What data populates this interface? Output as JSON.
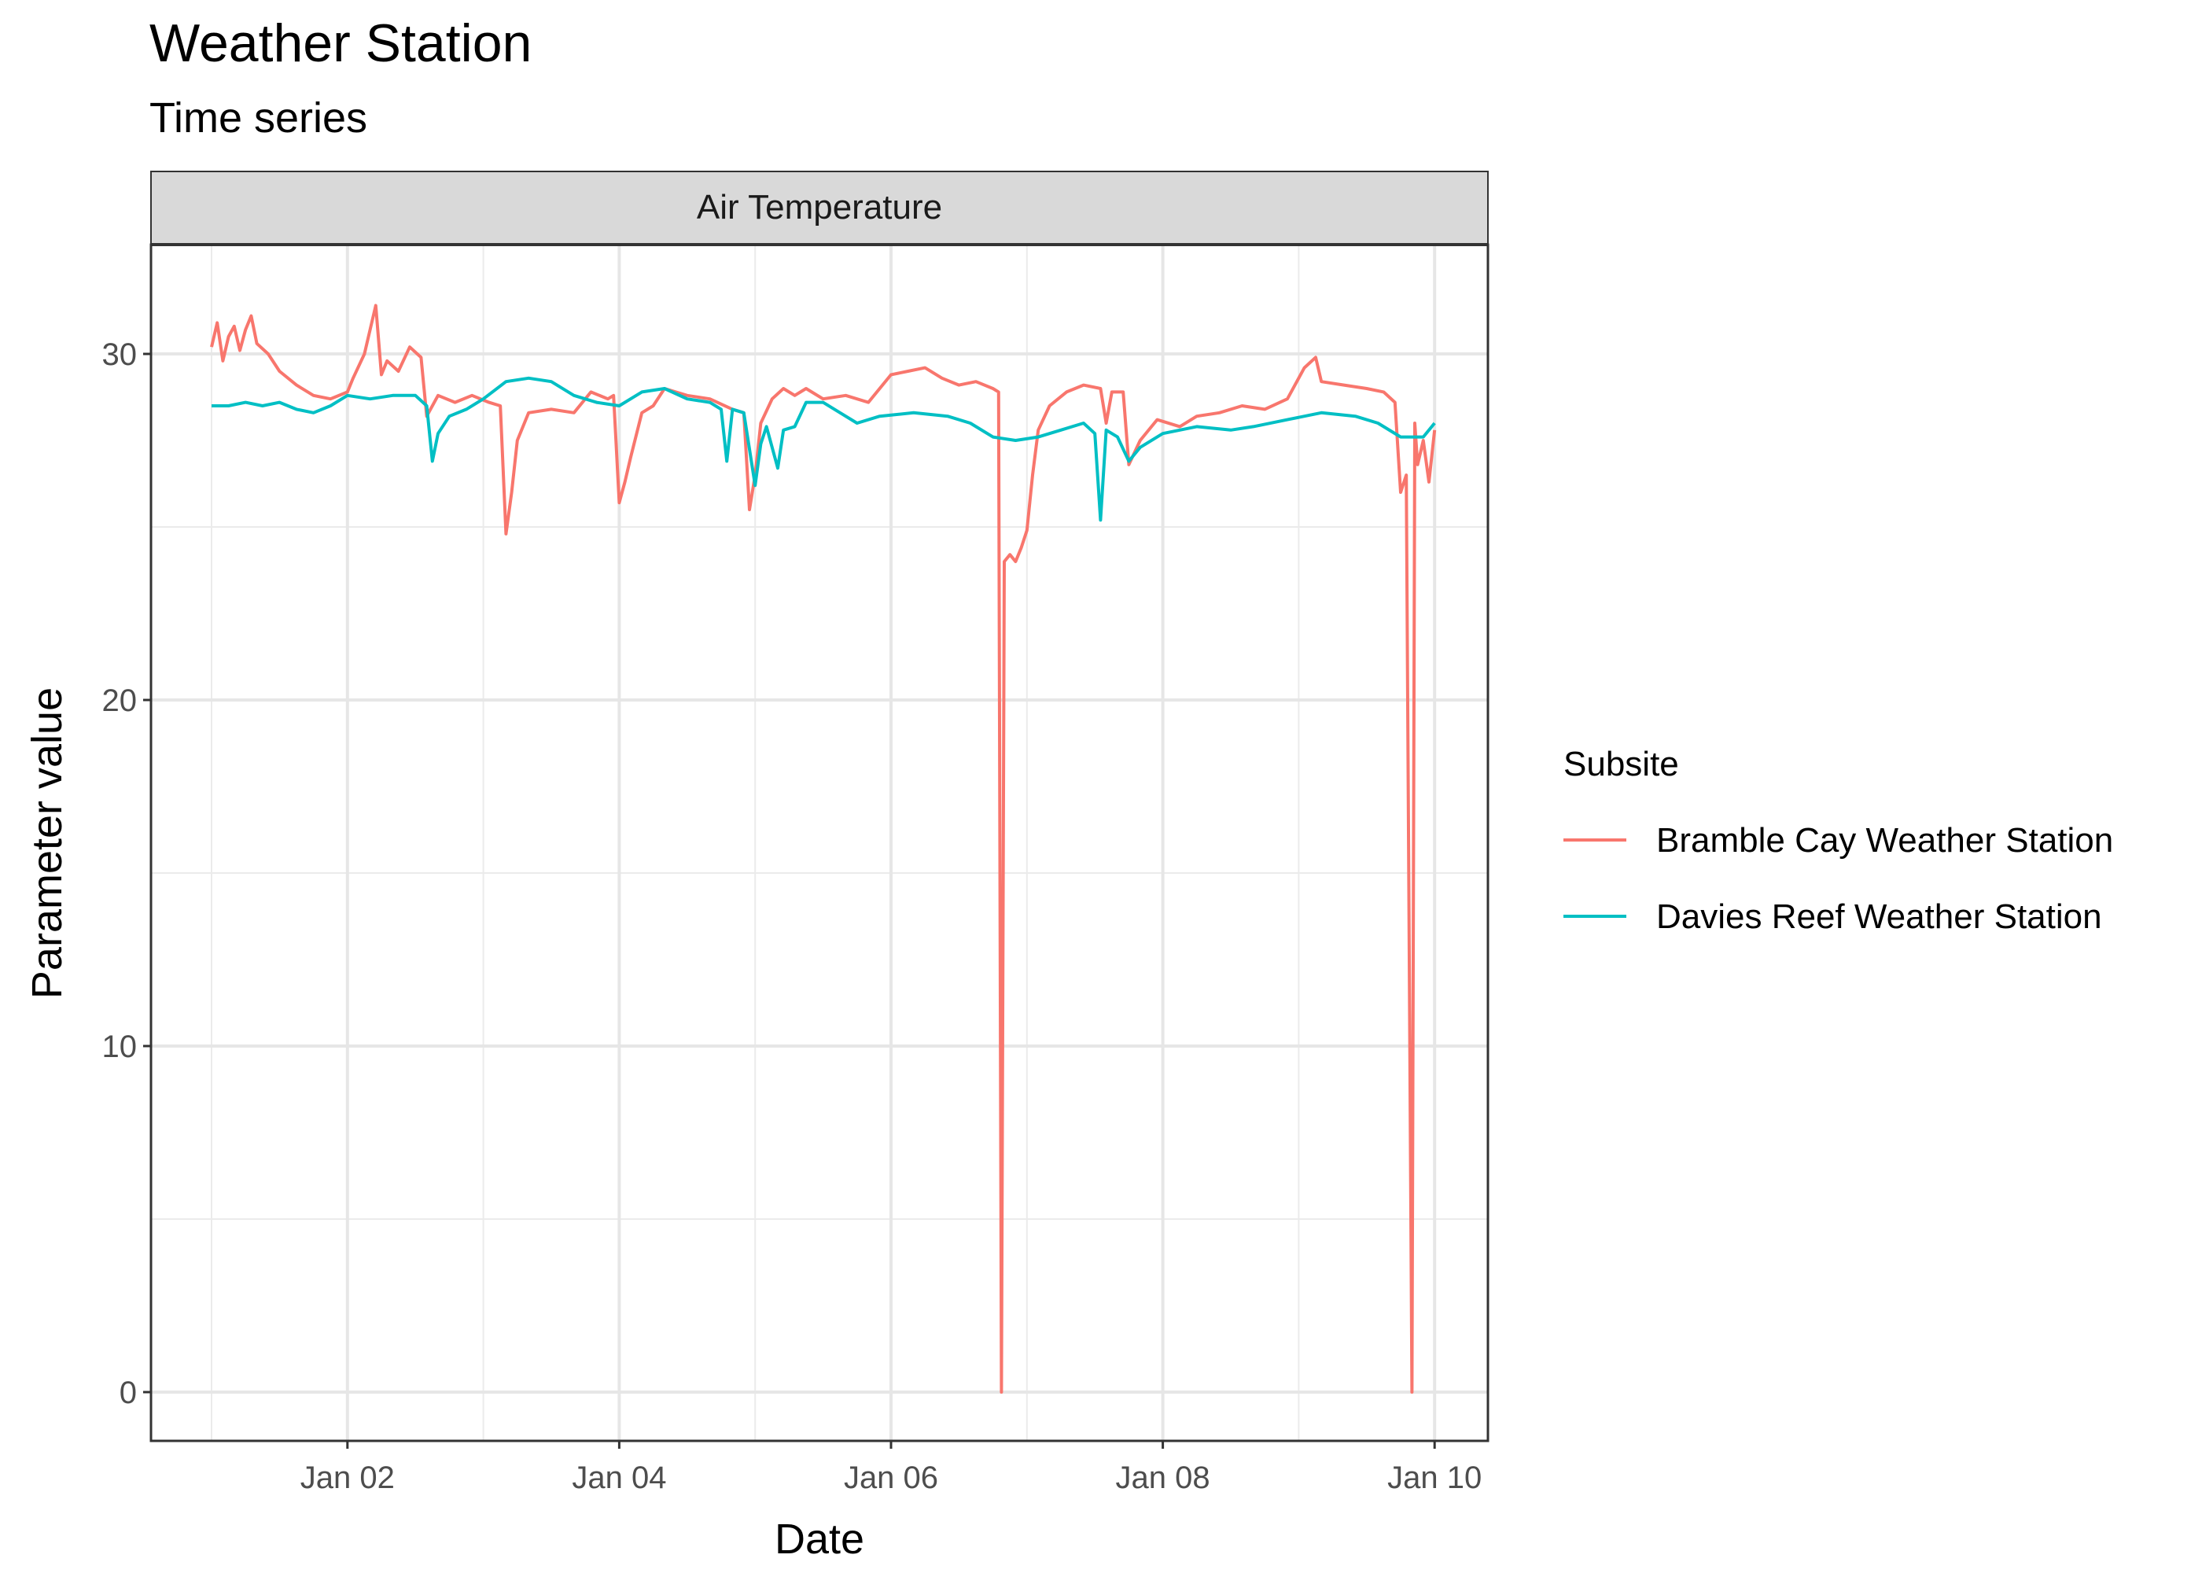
{
  "chart_data": {
    "type": "line",
    "title": "Weather Station",
    "subtitle": "Time series",
    "facet_label": "Air Temperature",
    "xlabel": "Date",
    "ylabel": "Parameter value",
    "x_ticks": [
      "Jan 02",
      "Jan 04",
      "Jan 06",
      "Jan 08",
      "Jan 10"
    ],
    "y_ticks": [
      "0",
      "10",
      "20",
      "30"
    ],
    "xlim": [
      "2024-01-01T00:00",
      "2024-01-10T00:00"
    ],
    "ylim": [
      0,
      30
    ],
    "grid": true,
    "legend_position": "right",
    "legend": {
      "title": "Subsite",
      "entries": [
        "Bramble Cay Weather Station",
        "Davies Reef Weather Station"
      ]
    },
    "series": [
      {
        "name": "Bramble Cay Weather Station",
        "color": "#F8766D",
        "points": [
          [
            "2024-01-01T00:00",
            30.2
          ],
          [
            "2024-01-01T01:00",
            30.9
          ],
          [
            "2024-01-01T02:00",
            29.8
          ],
          [
            "2024-01-01T03:00",
            30.5
          ],
          [
            "2024-01-01T04:00",
            30.8
          ],
          [
            "2024-01-01T05:00",
            30.1
          ],
          [
            "2024-01-01T06:00",
            30.7
          ],
          [
            "2024-01-01T07:00",
            31.1
          ],
          [
            "2024-01-01T08:00",
            30.3
          ],
          [
            "2024-01-01T10:00",
            30.0
          ],
          [
            "2024-01-01T12:00",
            29.5
          ],
          [
            "2024-01-01T15:00",
            29.1
          ],
          [
            "2024-01-01T18:00",
            28.8
          ],
          [
            "2024-01-01T21:00",
            28.7
          ],
          [
            "2024-01-02T00:00",
            28.9
          ],
          [
            "2024-01-02T01:00",
            29.3
          ],
          [
            "2024-01-02T03:00",
            30.0
          ],
          [
            "2024-01-02T05:00",
            31.4
          ],
          [
            "2024-01-02T06:00",
            29.4
          ],
          [
            "2024-01-02T07:00",
            29.8
          ],
          [
            "2024-01-02T09:00",
            29.5
          ],
          [
            "2024-01-02T11:00",
            30.2
          ],
          [
            "2024-01-02T13:00",
            29.9
          ],
          [
            "2024-01-02T14:00",
            28.2
          ],
          [
            "2024-01-02T16:00",
            28.8
          ],
          [
            "2024-01-02T19:00",
            28.6
          ],
          [
            "2024-01-02T22:00",
            28.8
          ],
          [
            "2024-01-03T01:00",
            28.6
          ],
          [
            "2024-01-03T03:00",
            28.5
          ],
          [
            "2024-01-03T04:00",
            24.8
          ],
          [
            "2024-01-03T05:00",
            26.0
          ],
          [
            "2024-01-03T06:00",
            27.5
          ],
          [
            "2024-01-03T08:00",
            28.3
          ],
          [
            "2024-01-03T12:00",
            28.4
          ],
          [
            "2024-01-03T16:00",
            28.3
          ],
          [
            "2024-01-03T19:00",
            28.9
          ],
          [
            "2024-01-03T22:00",
            28.7
          ],
          [
            "2024-01-03T23:00",
            28.8
          ],
          [
            "2024-01-04T00:00",
            25.7
          ],
          [
            "2024-01-04T01:00",
            26.3
          ],
          [
            "2024-01-04T02:00",
            27.0
          ],
          [
            "2024-01-04T04:00",
            28.3
          ],
          [
            "2024-01-04T06:00",
            28.5
          ],
          [
            "2024-01-04T08:00",
            29.0
          ],
          [
            "2024-01-04T12:00",
            28.8
          ],
          [
            "2024-01-04T16:00",
            28.7
          ],
          [
            "2024-01-04T20:00",
            28.4
          ],
          [
            "2024-01-04T22:00",
            28.3
          ],
          [
            "2024-01-04T23:00",
            25.5
          ],
          [
            "2024-01-05T00:00",
            26.5
          ],
          [
            "2024-01-05T01:00",
            28.0
          ],
          [
            "2024-01-05T03:00",
            28.7
          ],
          [
            "2024-01-05T05:00",
            29.0
          ],
          [
            "2024-01-05T07:00",
            28.8
          ],
          [
            "2024-01-05T09:00",
            29.0
          ],
          [
            "2024-01-05T12:00",
            28.7
          ],
          [
            "2024-01-05T16:00",
            28.8
          ],
          [
            "2024-01-05T20:00",
            28.6
          ],
          [
            "2024-01-06T00:00",
            29.4
          ],
          [
            "2024-01-06T03:00",
            29.5
          ],
          [
            "2024-01-06T06:00",
            29.6
          ],
          [
            "2024-01-06T09:00",
            29.3
          ],
          [
            "2024-01-06T12:00",
            29.1
          ],
          [
            "2024-01-06T15:00",
            29.2
          ],
          [
            "2024-01-06T18:00",
            29.0
          ],
          [
            "2024-01-06T19:00",
            28.9
          ],
          [
            "2024-01-06T19:30",
            0.0
          ],
          [
            "2024-01-06T20:00",
            24.0
          ],
          [
            "2024-01-06T21:00",
            24.2
          ],
          [
            "2024-01-06T22:00",
            24.0
          ],
          [
            "2024-01-06T23:00",
            24.4
          ],
          [
            "2024-01-07T00:00",
            24.9
          ],
          [
            "2024-01-07T01:00",
            26.5
          ],
          [
            "2024-01-07T02:00",
            27.8
          ],
          [
            "2024-01-07T04:00",
            28.5
          ],
          [
            "2024-01-07T07:00",
            28.9
          ],
          [
            "2024-01-07T10:00",
            29.1
          ],
          [
            "2024-01-07T13:00",
            29.0
          ],
          [
            "2024-01-07T14:00",
            28.0
          ],
          [
            "2024-01-07T15:00",
            28.9
          ],
          [
            "2024-01-07T17:00",
            28.9
          ],
          [
            "2024-01-07T18:00",
            26.8
          ],
          [
            "2024-01-07T20:00",
            27.5
          ],
          [
            "2024-01-07T23:00",
            28.1
          ],
          [
            "2024-01-08T03:00",
            27.9
          ],
          [
            "2024-01-08T06:00",
            28.2
          ],
          [
            "2024-01-08T10:00",
            28.3
          ],
          [
            "2024-01-08T14:00",
            28.5
          ],
          [
            "2024-01-08T18:00",
            28.4
          ],
          [
            "2024-01-08T22:00",
            28.7
          ],
          [
            "2024-01-09T01:00",
            29.6
          ],
          [
            "2024-01-09T03:00",
            29.9
          ],
          [
            "2024-01-09T04:00",
            29.2
          ],
          [
            "2024-01-09T08:00",
            29.1
          ],
          [
            "2024-01-09T12:00",
            29.0
          ],
          [
            "2024-01-09T15:00",
            28.9
          ],
          [
            "2024-01-09T17:00",
            28.6
          ],
          [
            "2024-01-09T18:00",
            26.0
          ],
          [
            "2024-01-09T19:00",
            26.5
          ],
          [
            "2024-01-09T20:00",
            0.0
          ],
          [
            "2024-01-09T20:30",
            28.0
          ],
          [
            "2024-01-09T21:00",
            26.8
          ],
          [
            "2024-01-09T22:00",
            27.5
          ],
          [
            "2024-01-09T23:00",
            26.3
          ],
          [
            "2024-01-10T00:00",
            27.8
          ]
        ]
      },
      {
        "name": "Davies Reef Weather Station",
        "color": "#00BFC4",
        "points": [
          [
            "2024-01-01T00:00",
            28.5
          ],
          [
            "2024-01-01T03:00",
            28.5
          ],
          [
            "2024-01-01T06:00",
            28.6
          ],
          [
            "2024-01-01T09:00",
            28.5
          ],
          [
            "2024-01-01T12:00",
            28.6
          ],
          [
            "2024-01-01T15:00",
            28.4
          ],
          [
            "2024-01-01T18:00",
            28.3
          ],
          [
            "2024-01-01T21:00",
            28.5
          ],
          [
            "2024-01-02T00:00",
            28.8
          ],
          [
            "2024-01-02T04:00",
            28.7
          ],
          [
            "2024-01-02T08:00",
            28.8
          ],
          [
            "2024-01-02T12:00",
            28.8
          ],
          [
            "2024-01-02T14:00",
            28.5
          ],
          [
            "2024-01-02T15:00",
            26.9
          ],
          [
            "2024-01-02T16:00",
            27.7
          ],
          [
            "2024-01-02T18:00",
            28.2
          ],
          [
            "2024-01-02T21:00",
            28.4
          ],
          [
            "2024-01-03T00:00",
            28.7
          ],
          [
            "2024-01-03T04:00",
            29.2
          ],
          [
            "2024-01-03T08:00",
            29.3
          ],
          [
            "2024-01-03T12:00",
            29.2
          ],
          [
            "2024-01-03T16:00",
            28.8
          ],
          [
            "2024-01-03T20:00",
            28.6
          ],
          [
            "2024-01-04T00:00",
            28.5
          ],
          [
            "2024-01-04T04:00",
            28.9
          ],
          [
            "2024-01-04T08:00",
            29.0
          ],
          [
            "2024-01-04T12:00",
            28.7
          ],
          [
            "2024-01-04T16:00",
            28.6
          ],
          [
            "2024-01-04T18:00",
            28.4
          ],
          [
            "2024-01-04T19:00",
            26.9
          ],
          [
            "2024-01-04T20:00",
            28.4
          ],
          [
            "2024-01-04T22:00",
            28.3
          ],
          [
            "2024-01-05T00:00",
            26.2
          ],
          [
            "2024-01-05T01:00",
            27.4
          ],
          [
            "2024-01-05T02:00",
            27.9
          ],
          [
            "2024-01-05T04:00",
            26.7
          ],
          [
            "2024-01-05T05:00",
            27.8
          ],
          [
            "2024-01-05T07:00",
            27.9
          ],
          [
            "2024-01-05T09:00",
            28.6
          ],
          [
            "2024-01-05T12:00",
            28.6
          ],
          [
            "2024-01-05T15:00",
            28.3
          ],
          [
            "2024-01-05T18:00",
            28.0
          ],
          [
            "2024-01-05T22:00",
            28.2
          ],
          [
            "2024-01-06T04:00",
            28.3
          ],
          [
            "2024-01-06T10:00",
            28.2
          ],
          [
            "2024-01-06T14:00",
            28.0
          ],
          [
            "2024-01-06T18:00",
            27.6
          ],
          [
            "2024-01-06T22:00",
            27.5
          ],
          [
            "2024-01-07T02:00",
            27.6
          ],
          [
            "2024-01-07T06:00",
            27.8
          ],
          [
            "2024-01-07T10:00",
            28.0
          ],
          [
            "2024-01-07T12:00",
            27.7
          ],
          [
            "2024-01-07T13:00",
            25.2
          ],
          [
            "2024-01-07T14:00",
            27.8
          ],
          [
            "2024-01-07T16:00",
            27.6
          ],
          [
            "2024-01-07T18:00",
            26.9
          ],
          [
            "2024-01-07T20:00",
            27.3
          ],
          [
            "2024-01-08T00:00",
            27.7
          ],
          [
            "2024-01-08T06:00",
            27.9
          ],
          [
            "2024-01-08T12:00",
            27.8
          ],
          [
            "2024-01-08T16:00",
            27.9
          ],
          [
            "2024-01-08T22:00",
            28.1
          ],
          [
            "2024-01-09T04:00",
            28.3
          ],
          [
            "2024-01-09T10:00",
            28.2
          ],
          [
            "2024-01-09T14:00",
            28.0
          ],
          [
            "2024-01-09T18:00",
            27.6
          ],
          [
            "2024-01-09T22:00",
            27.6
          ],
          [
            "2024-01-10T00:00",
            28.0
          ]
        ]
      }
    ]
  }
}
